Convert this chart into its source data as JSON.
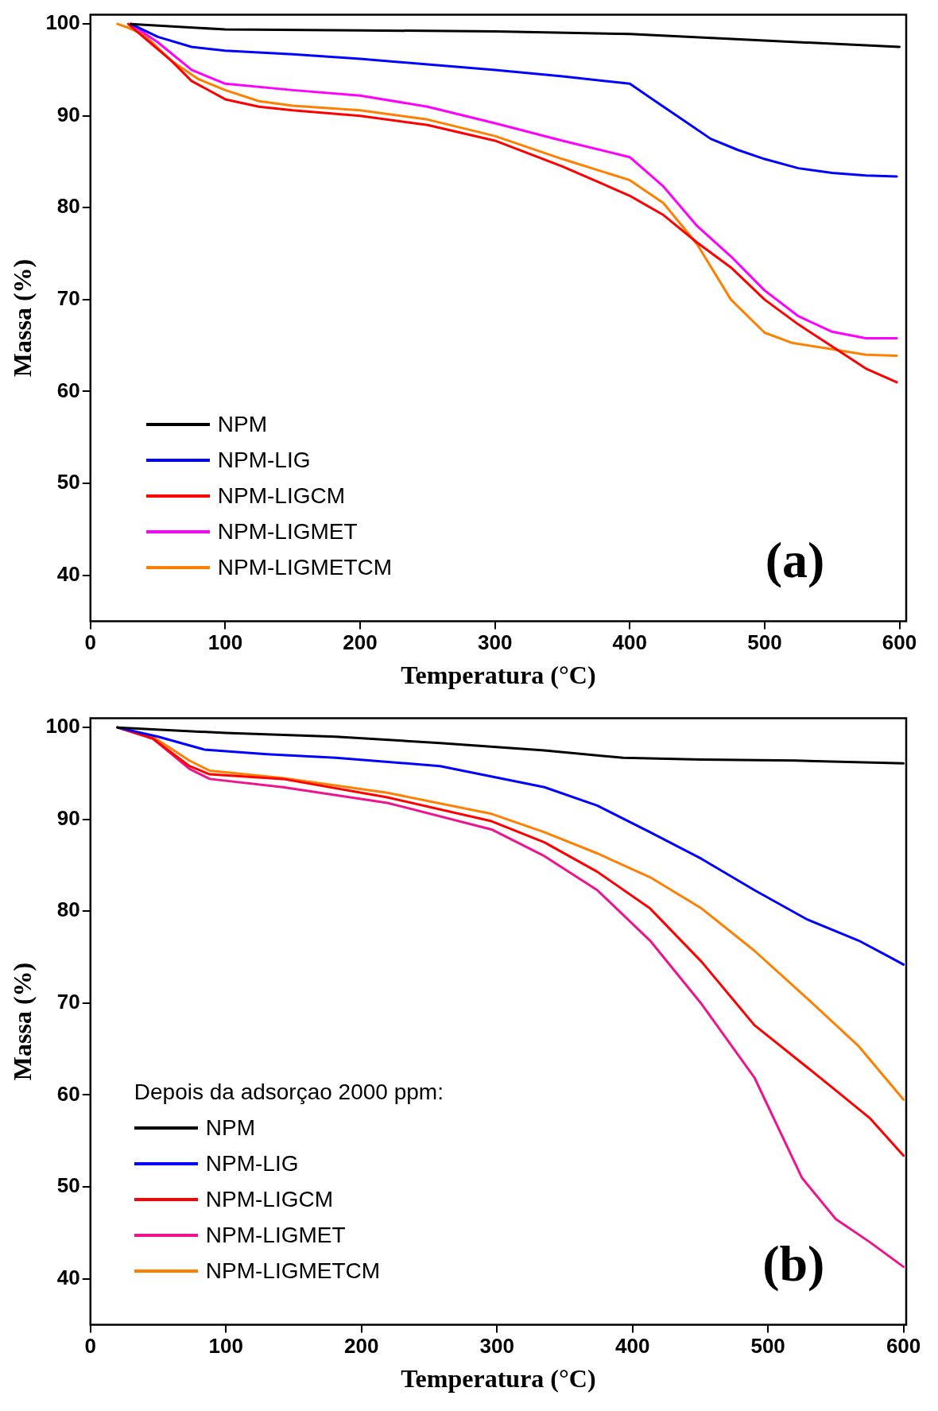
{
  "chart_data": [
    {
      "type": "line",
      "xlabel": "Temperatura (°C)",
      "ylabel": "Massa (%)",
      "xlim": [
        0,
        605
      ],
      "ylim": [
        35,
        101
      ],
      "xticks": [
        0,
        100,
        200,
        300,
        400,
        500,
        600
      ],
      "yticks": [
        40,
        50,
        60,
        70,
        80,
        90,
        100
      ],
      "legend": "bottom left",
      "annotations": [
        "(a)"
      ],
      "series": [
        {
          "name": "NPM",
          "color": "#000000",
          "x": [
            30,
            100,
            200,
            300,
            400,
            500,
            600
          ],
          "values": [
            100,
            99.4,
            99.3,
            99.2,
            98.9,
            98.2,
            97.5
          ]
        },
        {
          "name": "NPM-LIG",
          "color": "#0000ff",
          "x": [
            30,
            50,
            75,
            100,
            150,
            200,
            250,
            300,
            350,
            400,
            420,
            440,
            460,
            480,
            500,
            525,
            550,
            575,
            598
          ],
          "values": [
            100,
            98.6,
            97.5,
            97.1,
            96.7,
            96.2,
            95.6,
            95,
            94.3,
            93.5,
            91.5,
            89.5,
            87.5,
            86.3,
            85.3,
            84.3,
            83.8,
            83.5,
            83.4
          ]
        },
        {
          "name": "NPM-LIGCM",
          "color": "#ff0000",
          "x": [
            28,
            40,
            60,
            75,
            100,
            125,
            150,
            200,
            250,
            300,
            350,
            400,
            425,
            450,
            475,
            500,
            525,
            550,
            575,
            598
          ],
          "values": [
            100,
            98.5,
            96,
            93.8,
            91.8,
            91,
            90.6,
            90,
            89,
            87.3,
            84.5,
            81.3,
            79.2,
            76.2,
            73.5,
            70,
            67.3,
            64.9,
            62.5,
            61
          ]
        },
        {
          "name": "NPM-LIGMET",
          "color": "#ff00ff",
          "x": [
            30,
            50,
            75,
            100,
            150,
            200,
            250,
            300,
            350,
            400,
            425,
            450,
            475,
            500,
            525,
            550,
            575,
            598
          ],
          "values": [
            100,
            98,
            95,
            93.5,
            92.8,
            92.2,
            91,
            89.2,
            87.3,
            85.5,
            82.3,
            78,
            74.7,
            71,
            68.2,
            66.5,
            65.8,
            65.8
          ]
        },
        {
          "name": "NPM-LIGMETCM",
          "color": "#ff8000",
          "x": [
            20,
            28,
            40,
            60,
            80,
            100,
            125,
            150,
            200,
            250,
            300,
            350,
            400,
            425,
            450,
            475,
            500,
            520,
            550,
            575,
            598
          ],
          "values": [
            100,
            99.6,
            98.8,
            96,
            94,
            92.8,
            91.6,
            91.1,
            90.6,
            89.6,
            87.8,
            85.3,
            83,
            80.5,
            76,
            70,
            66.4,
            65.3,
            64.6,
            64,
            63.9
          ]
        }
      ]
    },
    {
      "type": "line",
      "xlabel": "Temperatura (°C)",
      "ylabel": "Massa (%)",
      "xlim": [
        0,
        602
      ],
      "ylim": [
        35,
        101
      ],
      "xticks": [
        0,
        100,
        200,
        300,
        400,
        500,
        600
      ],
      "yticks": [
        40,
        50,
        60,
        70,
        80,
        90,
        100
      ],
      "legend": "bottom left",
      "legend_title": "Depois da adsorçao 2000 ppm:",
      "annotations": [
        "(b)"
      ],
      "series": [
        {
          "name": "NPM",
          "color": "#000000",
          "x": [
            20,
            100,
            181,
            258,
            335,
            393,
            451,
            520,
            600
          ],
          "values": [
            100,
            99.4,
            99,
            98.3,
            97.5,
            96.7,
            96.5,
            96.4,
            96.1
          ]
        },
        {
          "name": "NPM-LIG",
          "color": "#0000ff",
          "x": [
            20,
            50,
            84,
            130,
            181,
            258,
            335,
            374,
            413,
            451,
            490,
            529,
            567,
            590,
            600
          ],
          "values": [
            100,
            99,
            97.6,
            97.1,
            96.7,
            95.8,
            93.5,
            91.5,
            88.6,
            85.7,
            82.3,
            79.1,
            76.8,
            75,
            74.2
          ]
        },
        {
          "name": "NPM-LIGCM",
          "color": "#ff0000",
          "x": [
            20,
            46,
            73,
            88,
            142,
            219,
            296,
            335,
            374,
            413,
            451,
            490,
            529,
            550,
            575,
            600
          ],
          "values": [
            100,
            98.8,
            95.8,
            94.9,
            94.4,
            92.4,
            89.8,
            87.5,
            84.3,
            80.3,
            74.5,
            67.6,
            63,
            60.5,
            57.5,
            53.4
          ]
        },
        {
          "name": "NPM-LIGMET",
          "color": "#f0148c",
          "x": [
            20,
            46,
            73,
            88,
            142,
            219,
            296,
            335,
            374,
            413,
            451,
            490,
            525,
            550,
            575,
            600
          ],
          "values": [
            100,
            98.8,
            95.5,
            94.4,
            93.5,
            91.8,
            88.9,
            86,
            82.3,
            76.8,
            69.9,
            61.9,
            51,
            46.5,
            44,
            41.3
          ]
        },
        {
          "name": "NPM-LIGMETCM",
          "color": "#ff8000",
          "x": [
            20,
            46,
            73,
            88,
            142,
            219,
            296,
            335,
            374,
            413,
            451,
            490,
            529,
            567,
            600
          ],
          "values": [
            100,
            99,
            96.4,
            95.3,
            94.5,
            92.9,
            90.6,
            88.6,
            86.3,
            83.7,
            80.3,
            75.7,
            70.5,
            65.3,
            59.5
          ]
        }
      ]
    }
  ]
}
